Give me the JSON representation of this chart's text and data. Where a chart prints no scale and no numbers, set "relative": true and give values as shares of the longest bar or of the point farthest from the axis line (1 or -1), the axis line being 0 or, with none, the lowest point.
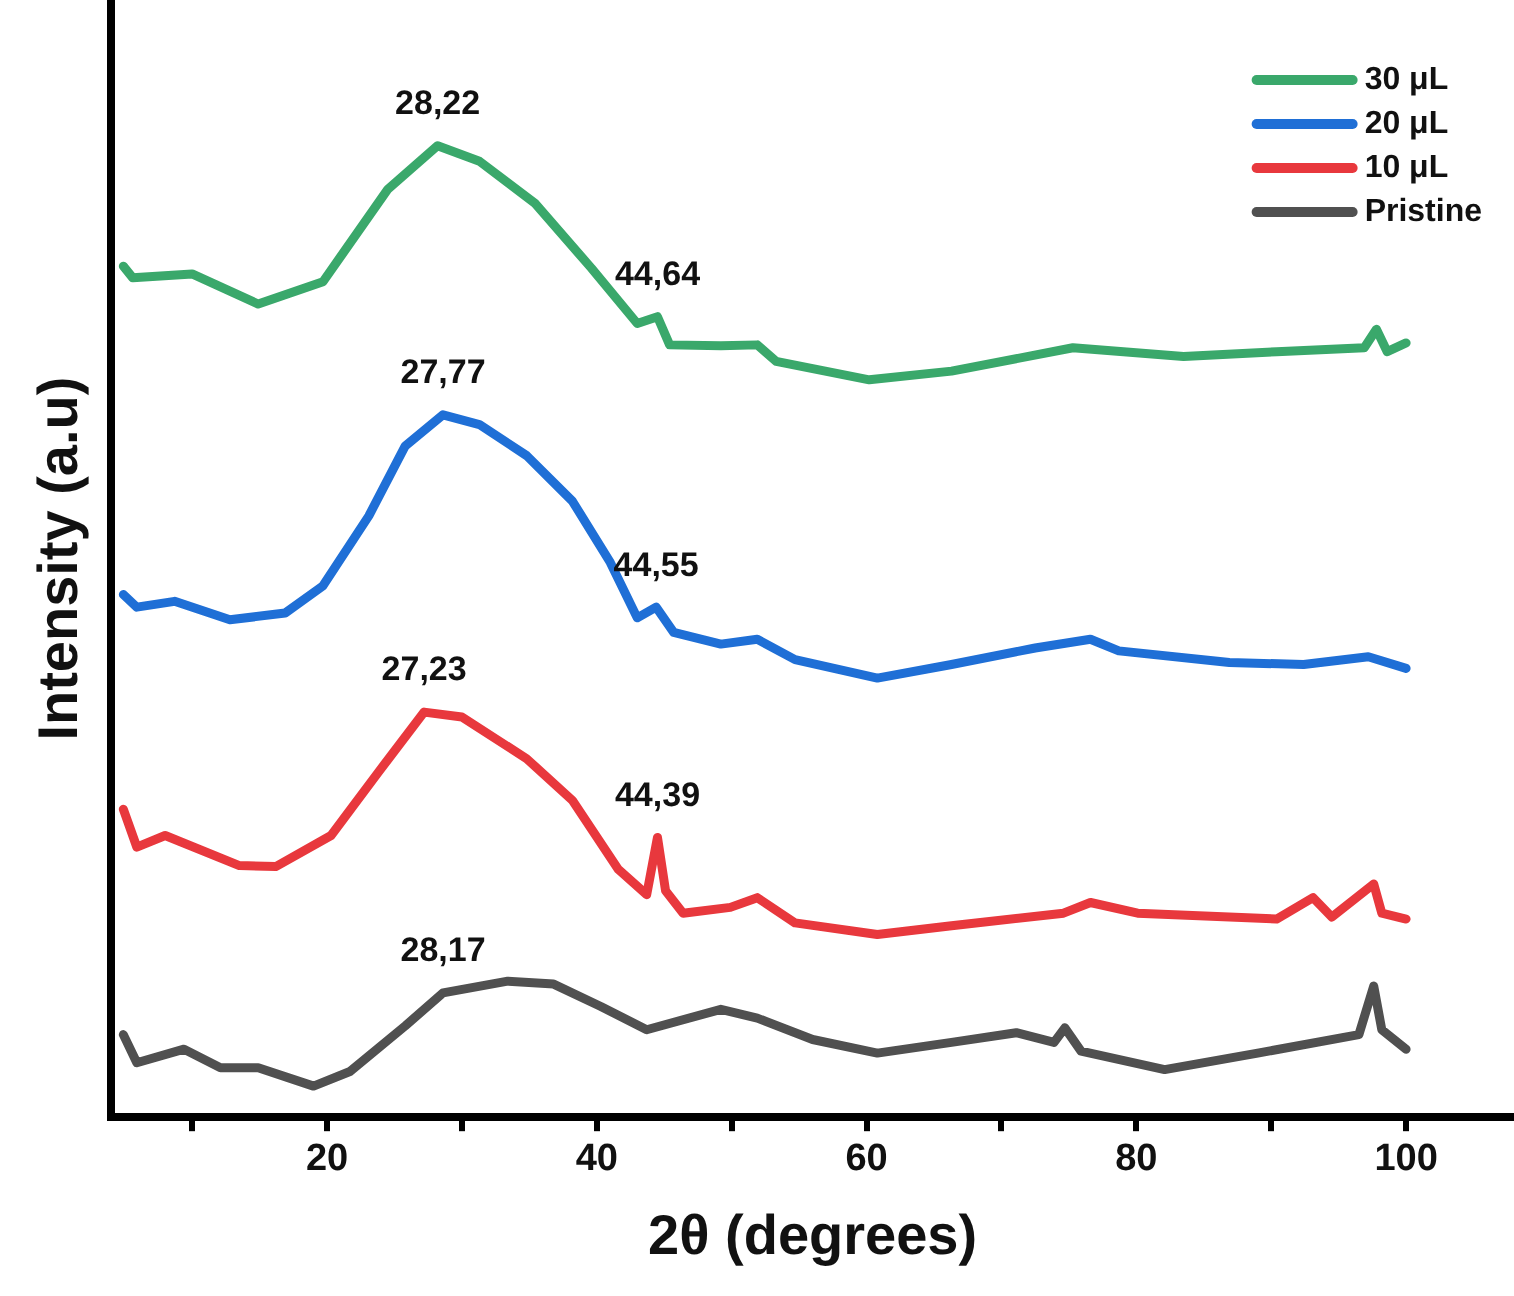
{
  "chart_data": {
    "type": "line",
    "relative": true,
    "xlabel": "2θ (degrees)",
    "ylabel": "Intensity (a.u)",
    "xlim": [
      4,
      108
    ],
    "xticks": [
      {
        "value": 10,
        "label": null
      },
      20,
      {
        "value": 30,
        "label": null
      },
      40,
      {
        "value": 50,
        "label": null
      },
      60,
      {
        "value": 70,
        "label": null
      },
      80,
      {
        "value": 90,
        "label": null
      },
      100
    ],
    "legend": "top right",
    "marker": "none",
    "line_style": "solid",
    "grid": false,
    "series": [
      {
        "name": "30 μL",
        "color": "#3aa86b",
        "x": [
          4.9,
          5.6,
          10.0,
          14.9,
          19.7,
          24.5,
          28.2,
          31.3,
          35.4,
          39.6,
          43.0,
          44.5,
          45.4,
          49.2,
          51.9,
          53.3,
          60.2,
          66.3,
          75.3,
          83.5,
          90.4,
          96.9,
          97.8,
          98.6,
          100
        ],
        "values": [
          0.876,
          0.864,
          0.868,
          0.837,
          0.86,
          0.955,
          1.0,
          0.984,
          0.941,
          0.874,
          0.817,
          0.824,
          0.795,
          0.794,
          0.795,
          0.778,
          0.759,
          0.768,
          0.792,
          0.783,
          0.788,
          0.792,
          0.811,
          0.788,
          0.797
        ]
      },
      {
        "name": "20 μL",
        "color": "#1f6fd6",
        "x": [
          4.9,
          5.9,
          8.7,
          12.8,
          16.9,
          19.7,
          23.1,
          25.8,
          28.6,
          31.3,
          34.8,
          38.2,
          41.0,
          43.0,
          44.4,
          45.7,
          49.2,
          51.9,
          54.7,
          60.8,
          66.3,
          72.5,
          76.6,
          78.7,
          86.9,
          92.4,
          97.2,
          100
        ],
        "values": [
          0.538,
          0.525,
          0.531,
          0.512,
          0.519,
          0.547,
          0.619,
          0.691,
          0.723,
          0.713,
          0.681,
          0.634,
          0.571,
          0.514,
          0.525,
          0.499,
          0.487,
          0.492,
          0.471,
          0.452,
          0.466,
          0.483,
          0.492,
          0.48,
          0.468,
          0.466,
          0.474,
          0.462
        ]
      },
      {
        "name": "10 μL",
        "color": "#e8383d",
        "x": [
          4.9,
          5.9,
          8.0,
          13.5,
          16.2,
          20.3,
          23.8,
          27.2,
          30.0,
          34.8,
          38.2,
          41.6,
          43.7,
          44.5,
          45.1,
          46.4,
          49.9,
          51.9,
          54.7,
          60.8,
          66.3,
          74.6,
          76.6,
          80.1,
          90.4,
          93.1,
          94.5,
          97.6,
          98.2,
          100
        ],
        "values": [
          0.317,
          0.278,
          0.29,
          0.259,
          0.258,
          0.29,
          0.355,
          0.417,
          0.412,
          0.369,
          0.326,
          0.255,
          0.229,
          0.288,
          0.233,
          0.21,
          0.216,
          0.226,
          0.2,
          0.188,
          0.197,
          0.21,
          0.221,
          0.21,
          0.204,
          0.226,
          0.206,
          0.24,
          0.21,
          0.204
        ]
      },
      {
        "name": "Pristine",
        "color": "#505050",
        "x": [
          4.9,
          5.9,
          9.4,
          12.1,
          14.9,
          19.0,
          21.7,
          25.8,
          28.6,
          33.4,
          36.8,
          40.3,
          43.7,
          49.2,
          51.9,
          56.0,
          60.8,
          66.3,
          71.1,
          73.9,
          74.7,
          75.9,
          82.1,
          89.0,
          96.5,
          97.6,
          98.2,
          100
        ],
        "values": [
          0.085,
          0.056,
          0.07,
          0.051,
          0.051,
          0.032,
          0.047,
          0.094,
          0.128,
          0.14,
          0.137,
          0.114,
          0.09,
          0.111,
          0.102,
          0.08,
          0.066,
          0.077,
          0.087,
          0.077,
          0.092,
          0.068,
          0.049,
          0.066,
          0.085,
          0.135,
          0.09,
          0.07
        ]
      }
    ],
    "annotations": [
      {
        "text": "28,22",
        "x": 28.2,
        "y": 1.0
      },
      {
        "text": "44,64",
        "x": 44.5,
        "y": 0.824
      },
      {
        "text": "27,77",
        "x": 28.6,
        "y": 0.723
      },
      {
        "text": "44,55",
        "x": 44.4,
        "y": 0.525
      },
      {
        "text": "27,23",
        "x": 27.2,
        "y": 0.417
      },
      {
        "text": "44,39",
        "x": 44.5,
        "y": 0.288
      },
      {
        "text": "28,17",
        "x": 28.6,
        "y": 0.128
      }
    ]
  }
}
